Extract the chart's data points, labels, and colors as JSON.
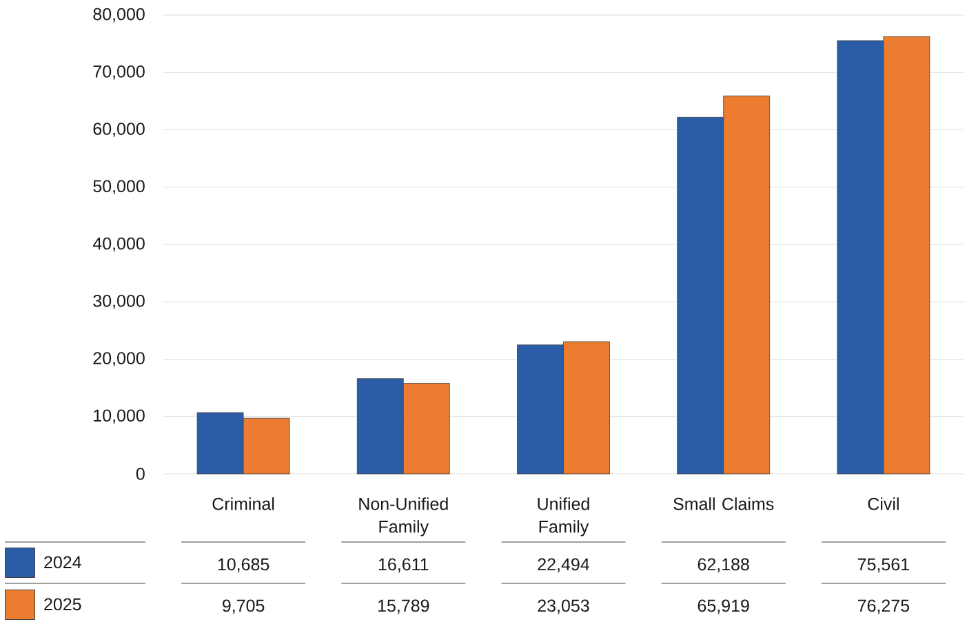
{
  "chart_data": {
    "type": "bar",
    "categories": [
      "Criminal",
      "Non-Unified Family",
      "Unified Family",
      "Small Claims",
      "Civil"
    ],
    "series": [
      {
        "name": "2024",
        "color": "#2b5ca8",
        "values": [
          10685,
          16611,
          22494,
          62188,
          75561
        ],
        "value_labels": [
          "10,685",
          "16,611",
          "22,494",
          "62,188",
          "75,561"
        ]
      },
      {
        "name": "2025",
        "color": "#ec7c30",
        "values": [
          9705,
          15789,
          23053,
          65919,
          76275
        ],
        "value_labels": [
          "9,705",
          "15,789",
          "23,053",
          "65,919",
          "76,275"
        ]
      }
    ],
    "ylim": [
      0,
      80000
    ],
    "yticks": [
      {
        "value": 0,
        "label": "0"
      },
      {
        "value": 10000,
        "label": "10,000"
      },
      {
        "value": 20000,
        "label": "20,000"
      },
      {
        "value": 30000,
        "label": "30,000"
      },
      {
        "value": 40000,
        "label": "40,000"
      },
      {
        "value": 50000,
        "label": "50,000"
      },
      {
        "value": 60000,
        "label": "60,000"
      },
      {
        "value": 70000,
        "label": "70,000"
      },
      {
        "value": 80000,
        "label": "80,000"
      }
    ],
    "grid": "y",
    "legend": "bottom left"
  }
}
